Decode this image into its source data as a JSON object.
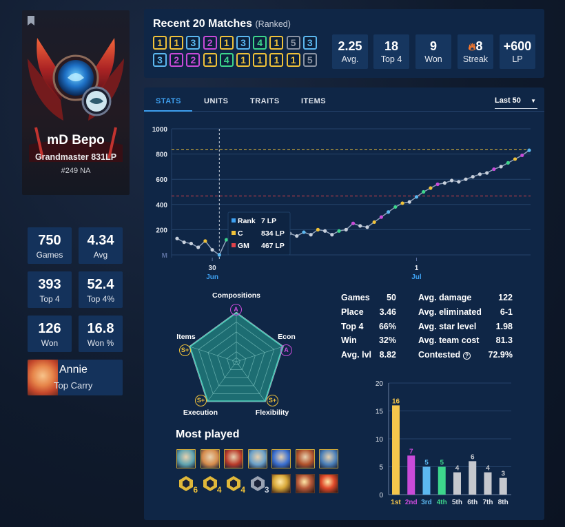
{
  "profile": {
    "name": "mD Bepo",
    "rank": "Grandmaster 831LP",
    "ladder": "#249 NA",
    "stats": [
      {
        "value": "750",
        "label": "Games"
      },
      {
        "value": "4.34",
        "label": "Avg"
      },
      {
        "value": "393",
        "label": "Top 4"
      },
      {
        "value": "52.4",
        "label": "Top 4%"
      },
      {
        "value": "126",
        "label": "Won"
      },
      {
        "value": "16.8",
        "label": "Won %"
      }
    ],
    "carry": {
      "name": "Annie",
      "role": "Top Carry"
    }
  },
  "recent": {
    "title": "Recent 20 Matches",
    "subtitle": "(Ranked)",
    "placements": [
      1,
      1,
      3,
      2,
      1,
      3,
      4,
      1,
      5,
      3,
      3,
      2,
      2,
      1,
      4,
      1,
      1,
      1,
      1,
      5
    ],
    "summary": [
      {
        "value": "2.25",
        "label": "Avg."
      },
      {
        "value": "18",
        "label": "Top 4"
      },
      {
        "value": "9",
        "label": "Won"
      },
      {
        "value": "8",
        "label": "Streak",
        "icon": "flame-icon"
      },
      {
        "value": "+600",
        "label": "LP"
      }
    ]
  },
  "tabs": [
    "STATS",
    "UNITS",
    "TRAITS",
    "ITEMS"
  ],
  "filter": {
    "selected": "Last 50"
  },
  "lp_chart": {
    "type": "line",
    "yticks": [
      "1000",
      "800",
      "600",
      "400",
      "200",
      "M"
    ],
    "xticks": [
      {
        "day": "30",
        "month": "Jun"
      },
      {
        "day": "1",
        "month": "Jul"
      }
    ],
    "ylim": [
      0,
      1000
    ],
    "c_threshold": 834,
    "gm_threshold": 467,
    "values": [
      130,
      100,
      90,
      60,
      110,
      40,
      0,
      120,
      150,
      170,
      220,
      180,
      190,
      200,
      170,
      210,
      170,
      150,
      180,
      160,
      200,
      190,
      160,
      190,
      200,
      250,
      230,
      220,
      260,
      300,
      340,
      380,
      410,
      420,
      460,
      500,
      530,
      560,
      570,
      590,
      580,
      600,
      620,
      640,
      650,
      680,
      700,
      730,
      760,
      790,
      830
    ],
    "tooltip": {
      "rows": [
        {
          "label": "Rank",
          "value": "7 LP",
          "color": "#3ea0f0"
        },
        {
          "label": "C",
          "value": "834 LP",
          "color": "#f0c23a"
        },
        {
          "label": "GM",
          "value": "467 LP",
          "color": "#e0424a"
        }
      ]
    }
  },
  "radar": {
    "axes": [
      {
        "label": "Compositions",
        "grade": "A",
        "color": "#c94bd9"
      },
      {
        "label": "Econ",
        "grade": "A",
        "color": "#c94bd9"
      },
      {
        "label": "Flexibility",
        "grade": "S+",
        "color": "#f0c23a"
      },
      {
        "label": "Execution",
        "grade": "S+",
        "color": "#f0c23a"
      },
      {
        "label": "Items",
        "grade": "S+",
        "color": "#f0c23a"
      }
    ]
  },
  "summary_stats": {
    "left": [
      {
        "label": "Games",
        "value": "50"
      },
      {
        "label": "Place",
        "value": "3.46"
      },
      {
        "label": "Top 4",
        "value": "66%"
      },
      {
        "label": "Win",
        "value": "32%"
      },
      {
        "label": "Avg. lvl",
        "value": "8.82"
      }
    ],
    "right": [
      {
        "label": "Avg. damage",
        "value": "122"
      },
      {
        "label": "Avg. eliminated",
        "value": "6-1"
      },
      {
        "label": "Avg. star level",
        "value": "1.98"
      },
      {
        "label": "Avg. team cost",
        "value": "81.3"
      },
      {
        "label": "Contested",
        "value": "72.9%"
      }
    ]
  },
  "most_played": {
    "title": "Most played",
    "item_counts": [
      "6",
      "4",
      "4",
      "3"
    ]
  },
  "chart_data": {
    "type": "bar",
    "categories": [
      "1st",
      "2nd",
      "3rd",
      "4th",
      "5th",
      "6th",
      "7th",
      "8th"
    ],
    "values": [
      16,
      7,
      5,
      5,
      4,
      6,
      4,
      3
    ],
    "colors": [
      "#f5c64c",
      "#c94bd9",
      "#5cb8f0",
      "#3dd68c",
      "#c5c8ce",
      "#c5c8ce",
      "#c5c8ce",
      "#c5c8ce"
    ],
    "ylim": [
      0,
      20
    ],
    "yticks": [
      "0",
      "5",
      "10",
      "15",
      "20"
    ]
  }
}
